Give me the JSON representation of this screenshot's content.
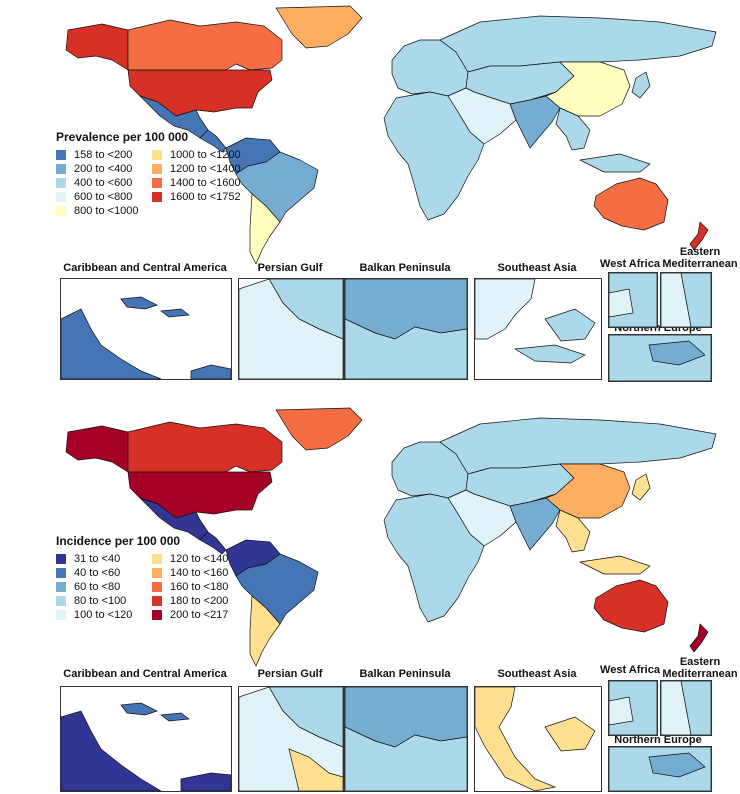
{
  "maps": {
    "prevalence": {
      "legend_title": "Prevalence per 100 000",
      "legend_items": [
        {
          "label": "158  to  <200",
          "color": "#4575b4"
        },
        {
          "label": "1000  to  <1200",
          "color": "#fee090"
        },
        {
          "label": "200  to  <400",
          "color": "#74add1"
        },
        {
          "label": "1200  to  <1400",
          "color": "#fdae61"
        },
        {
          "label": "400  to  <600",
          "color": "#abd9e9"
        },
        {
          "label": "1400  to  <1600",
          "color": "#f46d43"
        },
        {
          "label": "600  to  <800",
          "color": "#e0f3f8"
        },
        {
          "label": "1600  to  <1752",
          "color": "#d73027"
        },
        {
          "label": "800  to  <1000",
          "color": "#ffffbf"
        }
      ],
      "insets": {
        "caribbean": "Caribbean and Central America",
        "persian_gulf": "Persian Gulf",
        "balkan": "Balkan Peninsula",
        "southeast_asia": "Southeast Asia",
        "west_africa": "West Africa",
        "eastern_med": "Eastern Mediterranean",
        "northern_europe": "Northern Europe"
      }
    },
    "incidence": {
      "legend_title": "Incidence per 100 000",
      "legend_items": [
        {
          "label": "31  to  <40",
          "color": "#313695"
        },
        {
          "label": "120  to  <140",
          "color": "#fee090"
        },
        {
          "label": "40  to  <60",
          "color": "#4575b4"
        },
        {
          "label": "140  to  <160",
          "color": "#fdae61"
        },
        {
          "label": "60  to  <80",
          "color": "#74add1"
        },
        {
          "label": "160  to  <180",
          "color": "#f46d43"
        },
        {
          "label": "80  to  <100",
          "color": "#abd9e9"
        },
        {
          "label": "180  to  <200",
          "color": "#d73027"
        },
        {
          "label": "100  to  <120",
          "color": "#e0f3f8"
        },
        {
          "label": "200  to  <217",
          "color": "#a50026"
        }
      ],
      "insets": {
        "caribbean": "Caribbean and Central America",
        "persian_gulf": "Persian Gulf",
        "balkan": "Balkan Peninsula",
        "southeast_asia": "Southeast Asia",
        "west_africa": "West Africa",
        "eastern_med": "Eastern Mediterranean",
        "northern_europe": "Northern Europe"
      }
    }
  },
  "region_colors": {
    "prevalence": {
      "greenland": "#fdae61",
      "canada": "#f46d43",
      "usa": "#d73027",
      "alaska": "#d73027",
      "mexico": "#4575b4",
      "central_america": "#4575b4",
      "south_america_north": "#4575b4",
      "south_america_central": "#74add1",
      "south_america_south": "#ffffbf",
      "europe": "#abd9e9",
      "russia": "#abd9e9",
      "china": "#ffffbf",
      "india": "#74add1",
      "middle_east": "#e0f3f8",
      "central_asia": "#abd9e9",
      "africa": "#abd9e9",
      "southeast_asia": "#abd9e9",
      "australia": "#f46d43",
      "new_zealand": "#d73027",
      "japan": "#abd9e9"
    },
    "incidence": {
      "greenland": "#f46d43",
      "canada": "#d73027",
      "usa": "#a50026",
      "alaska": "#a50026",
      "mexico": "#313695",
      "central_america": "#313695",
      "south_america_north": "#313695",
      "south_america_central": "#4575b4",
      "south_america_south": "#fee090",
      "europe": "#abd9e9",
      "russia": "#abd9e9",
      "china": "#fdae61",
      "india": "#74add1",
      "middle_east": "#e0f3f8",
      "central_asia": "#abd9e9",
      "africa": "#abd9e9",
      "southeast_asia": "#fee090",
      "australia": "#d73027",
      "new_zealand": "#a50026",
      "japan": "#fee090"
    }
  }
}
